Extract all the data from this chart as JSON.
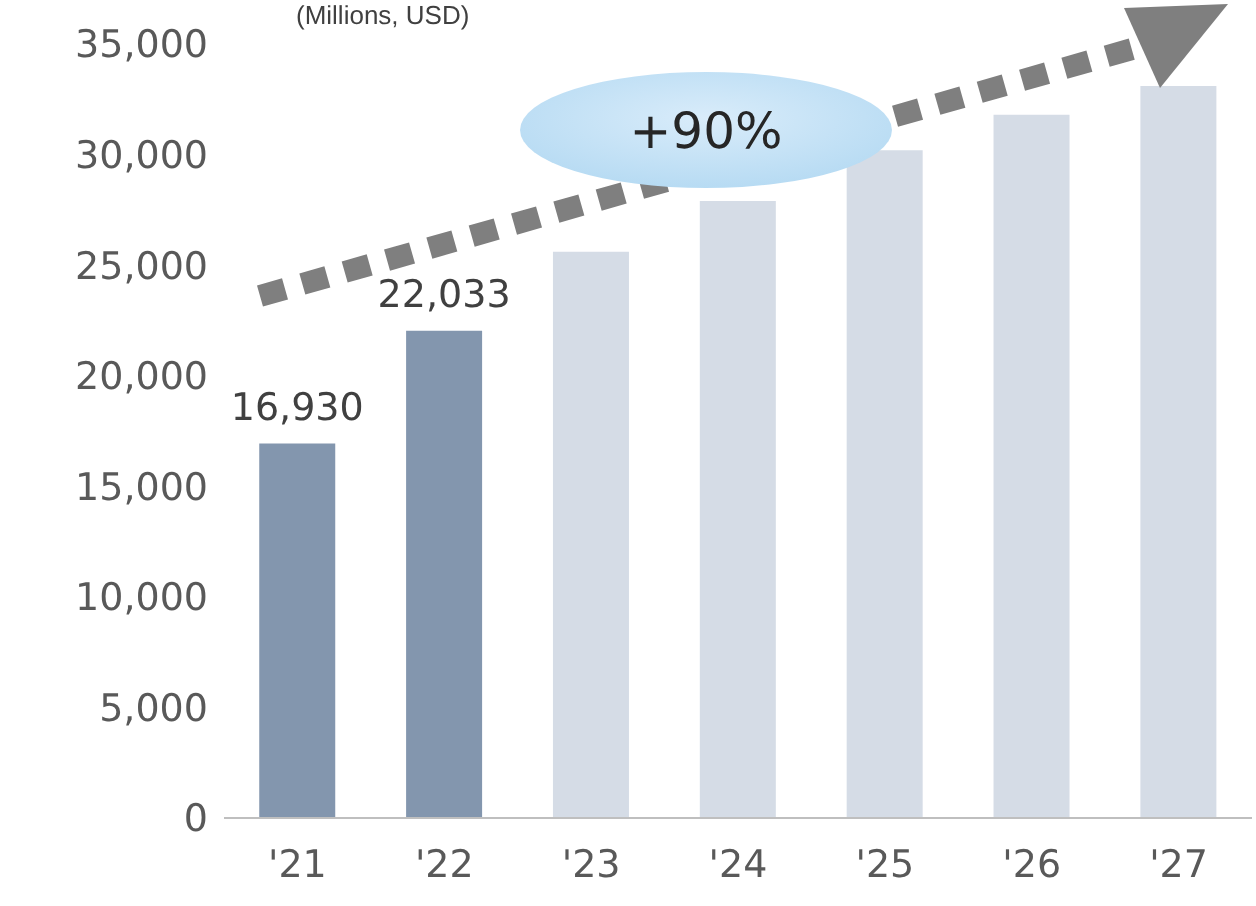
{
  "chart_data": {
    "type": "bar",
    "ylabel": "(Millions, USD)",
    "categories": [
      "'21",
      "'22",
      "'23",
      "'24",
      "'25",
      "'26",
      "'27"
    ],
    "values": [
      16930,
      22033,
      25600,
      27900,
      30200,
      31800,
      33100
    ],
    "colors": [
      "#8396ae",
      "#8396ae",
      "#d5dce6",
      "#d5dce6",
      "#d5dce6",
      "#d5dce6",
      "#d5dce6"
    ],
    "value_labels": [
      "16,930",
      "22,033",
      null,
      null,
      null,
      null,
      null
    ],
    "ylim": [
      0,
      35000
    ],
    "yticks": [
      {
        "value": 0,
        "label": "0"
      },
      {
        "value": 5000,
        "label": "5,000"
      },
      {
        "value": 10000,
        "label": "10,000"
      },
      {
        "value": 15000,
        "label": "15,000"
      },
      {
        "value": 20000,
        "label": "20,000"
      },
      {
        "value": 25000,
        "label": "25,000"
      },
      {
        "value": 30000,
        "label": "30,000"
      },
      {
        "value": 35000,
        "label": "35,000"
      }
    ],
    "annotations": [
      "+90%"
    ],
    "grid": false,
    "legend": false
  }
}
